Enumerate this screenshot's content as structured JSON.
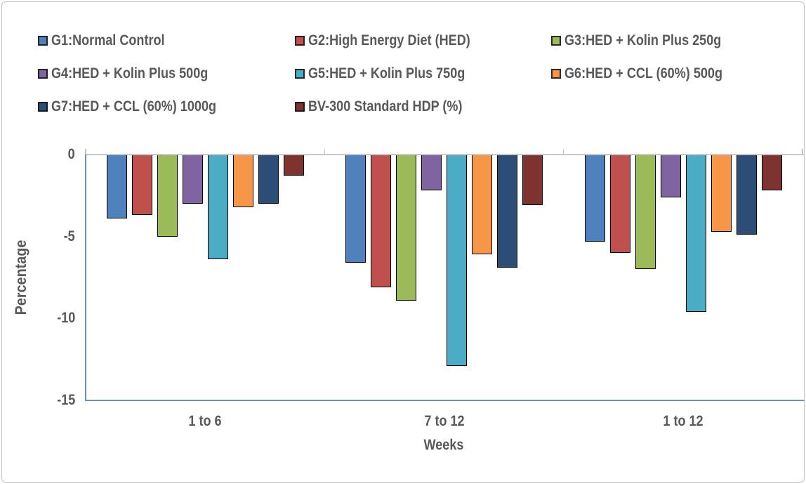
{
  "chart_data": {
    "type": "bar",
    "title": "",
    "categories": [
      "1 to 6",
      "7 to 12",
      "1 to 12"
    ],
    "series": [
      {
        "name": "G1:Normal Control",
        "color": "#4F81BD",
        "values": [
          -3.9,
          -6.6,
          -5.3
        ]
      },
      {
        "name": "G2:High Energy Diet (HED)",
        "color": "#C0504D",
        "values": [
          -3.7,
          -8.1,
          -6.0
        ]
      },
      {
        "name": "G3:HED + Kolin Plus 250g",
        "color": "#9BBB59",
        "values": [
          -5.0,
          -8.9,
          -7.0
        ]
      },
      {
        "name": "G4:HED + Kolin Plus  500g",
        "color": "#8064A2",
        "values": [
          -3.0,
          -2.2,
          -2.6
        ]
      },
      {
        "name": "G5:HED + Kolin Plus  750g",
        "color": "#4BACC6",
        "values": [
          -6.4,
          -12.9,
          -9.6
        ]
      },
      {
        "name": "G6:HED + CCL (60%) 500g",
        "color": "#F79646",
        "values": [
          -3.2,
          -6.1,
          -4.7
        ]
      },
      {
        "name": "G7:HED + CCL (60%) 1000g",
        "color": "#2C4D75",
        "values": [
          -3.0,
          -6.9,
          -4.9
        ]
      },
      {
        "name": "BV-300 Standard HDP (%)",
        "color": "#7E3330",
        "values": [
          -1.3,
          -3.1,
          -2.2
        ]
      }
    ],
    "xlabel": "Weeks",
    "ylabel": "Percentage",
    "ylim": [
      -15,
      0
    ],
    "yticks": [
      0,
      -5,
      -10,
      -15
    ],
    "legend_position": "top",
    "grid": false
  },
  "colors": {
    "axis_line": "#6a8fc8",
    "zero_line": "#c9c9c9",
    "text": "#595959",
    "bar_border": "#000000",
    "frame_border": "#c3c3c3"
  }
}
